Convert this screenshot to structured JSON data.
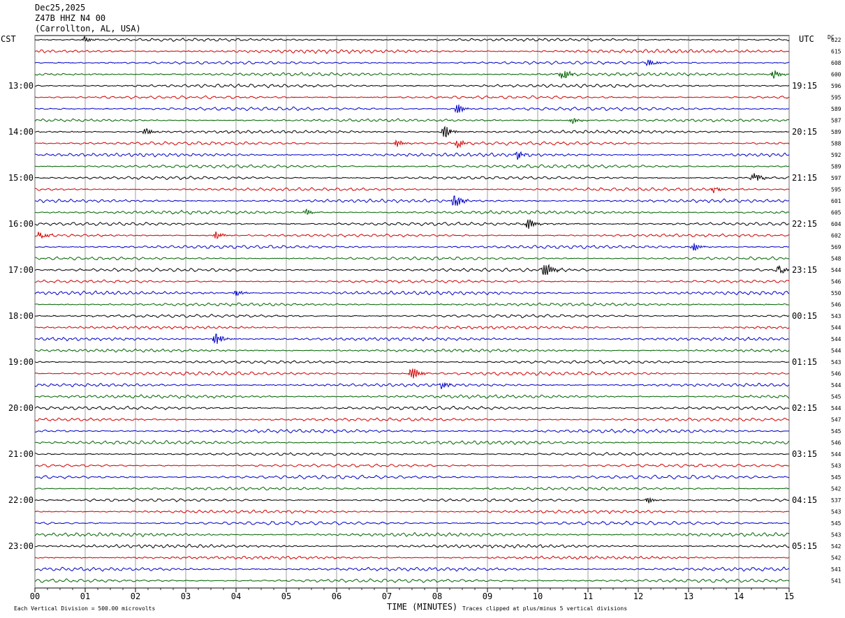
{
  "header": {
    "date": "Dec25,2025",
    "station": "Z47B HHZ N4 00",
    "location": "(Carrollton, AL, USA)"
  },
  "left_axis_label": "CST",
  "right_axis_label": "UTC",
  "dc_label": "DC",
  "chart_data": {
    "type": "line",
    "title": "Dec25,2025",
    "xlabel": "TIME (MINUTES)",
    "ylabel": "",
    "x_ticks": [
      "00",
      "01",
      "02",
      "03",
      "04",
      "05",
      "06",
      "07",
      "08",
      "09",
      "10",
      "11",
      "12",
      "13",
      "14",
      "15"
    ],
    "xlim": [
      0,
      15
    ],
    "trace_count": 48,
    "trace_colors": [
      "#000000",
      "#d00000",
      "#0000c8",
      "#006400"
    ],
    "left_hour_labels": [
      "13:00",
      "14:00",
      "15:00",
      "16:00",
      "17:00",
      "18:00",
      "19:00",
      "20:00",
      "21:00",
      "22:00",
      "23:00"
    ],
    "right_hour_labels": [
      "19:15",
      "20:15",
      "21:15",
      "22:15",
      "23:15",
      "00:15",
      "01:15",
      "02:15",
      "03:15",
      "04:15",
      "05:15"
    ],
    "dc_offsets": [
      "622",
      "615",
      "608",
      "600",
      "596",
      "595",
      "589",
      "587",
      "589",
      "588",
      "592",
      "589",
      "597",
      "595",
      "601",
      "605",
      "604",
      "602",
      "569",
      "548",
      "544",
      "546",
      "550",
      "546",
      "543",
      "544",
      "544",
      "544",
      "543",
      "546",
      "544",
      "545",
      "544",
      "547",
      "545",
      "546",
      "544",
      "543",
      "545",
      "542",
      "537",
      "543",
      "545",
      "543",
      "542",
      "542",
      "541",
      "541"
    ],
    "events": [
      {
        "trace": 0,
        "minute": 1.0,
        "amp": 1.0
      },
      {
        "trace": 3,
        "minute": 10.5,
        "amp": 2.0
      },
      {
        "trace": 3,
        "minute": 14.7,
        "amp": 1.5
      },
      {
        "trace": 2,
        "minute": 12.2,
        "amp": 1.2
      },
      {
        "trace": 6,
        "minute": 8.4,
        "amp": 1.8
      },
      {
        "trace": 7,
        "minute": 10.7,
        "amp": 1.2
      },
      {
        "trace": 8,
        "minute": 8.15,
        "amp": 2.5
      },
      {
        "trace": 8,
        "minute": 2.2,
        "amp": 1.2
      },
      {
        "trace": 9,
        "minute": 8.4,
        "amp": 1.5
      },
      {
        "trace": 9,
        "minute": 7.2,
        "amp": 1.2
      },
      {
        "trace": 10,
        "minute": 9.6,
        "amp": 1.3
      },
      {
        "trace": 12,
        "minute": 14.3,
        "amp": 1.8
      },
      {
        "trace": 13,
        "minute": 13.5,
        "amp": 1.2
      },
      {
        "trace": 14,
        "minute": 8.35,
        "amp": 2.8
      },
      {
        "trace": 15,
        "minute": 5.4,
        "amp": 1.2
      },
      {
        "trace": 16,
        "minute": 9.8,
        "amp": 2.2
      },
      {
        "trace": 17,
        "minute": 3.6,
        "amp": 1.3
      },
      {
        "trace": 17,
        "minute": 0.1,
        "amp": 1.2
      },
      {
        "trace": 18,
        "minute": 13.1,
        "amp": 1.4
      },
      {
        "trace": 20,
        "minute": 10.15,
        "amp": 3.2
      },
      {
        "trace": 20,
        "minute": 14.8,
        "amp": 1.5
      },
      {
        "trace": 22,
        "minute": 4.0,
        "amp": 1.2
      },
      {
        "trace": 26,
        "minute": 3.6,
        "amp": 2.6
      },
      {
        "trace": 29,
        "minute": 7.5,
        "amp": 2.6
      },
      {
        "trace": 30,
        "minute": 8.1,
        "amp": 1.1
      },
      {
        "trace": 40,
        "minute": 12.2,
        "amp": 1.0
      }
    ]
  },
  "footer": {
    "scale_note": "Each Vertical Division =  500.00 microvolts",
    "clip_note": "Traces clipped at plus/minus 5 vertical divisions"
  }
}
